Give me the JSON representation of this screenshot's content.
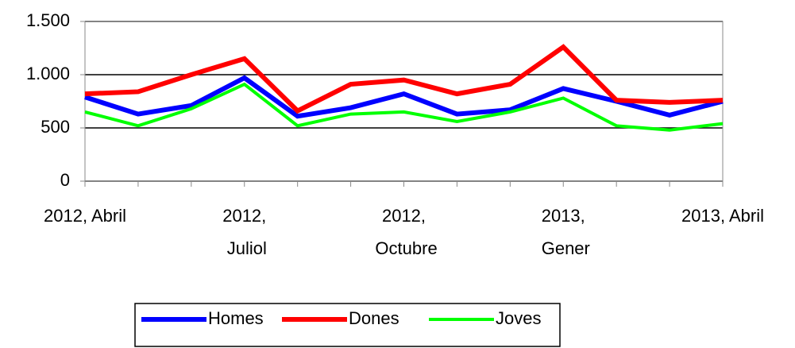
{
  "chart_data": {
    "type": "line",
    "categories": [
      "2012, Abril",
      null,
      null,
      "2012, Juliol",
      null,
      null,
      "2012, Octubre",
      null,
      null,
      "2013, Gener",
      null,
      null,
      "2013, Abril"
    ],
    "series": [
      {
        "name": "Homes",
        "color": "#0000ff",
        "values": [
          790,
          630,
          710,
          970,
          610,
          690,
          820,
          630,
          670,
          870,
          750,
          620,
          750
        ]
      },
      {
        "name": "Dones",
        "color": "#ff0000",
        "values": [
          820,
          840,
          1000,
          1150,
          660,
          910,
          950,
          820,
          910,
          1260,
          760,
          740,
          760
        ]
      },
      {
        "name": "Joves",
        "color": "#00ff00",
        "values": [
          650,
          520,
          680,
          910,
          520,
          630,
          650,
          560,
          650,
          780,
          520,
          480,
          540
        ]
      }
    ],
    "ylim": [
      0,
      1500
    ],
    "yticks": [
      0,
      500,
      {
        "value": 1000,
        "label": "1.000"
      },
      {
        "value": 1500,
        "label": "1.500"
      }
    ],
    "grid": true,
    "legend": "bottom"
  }
}
